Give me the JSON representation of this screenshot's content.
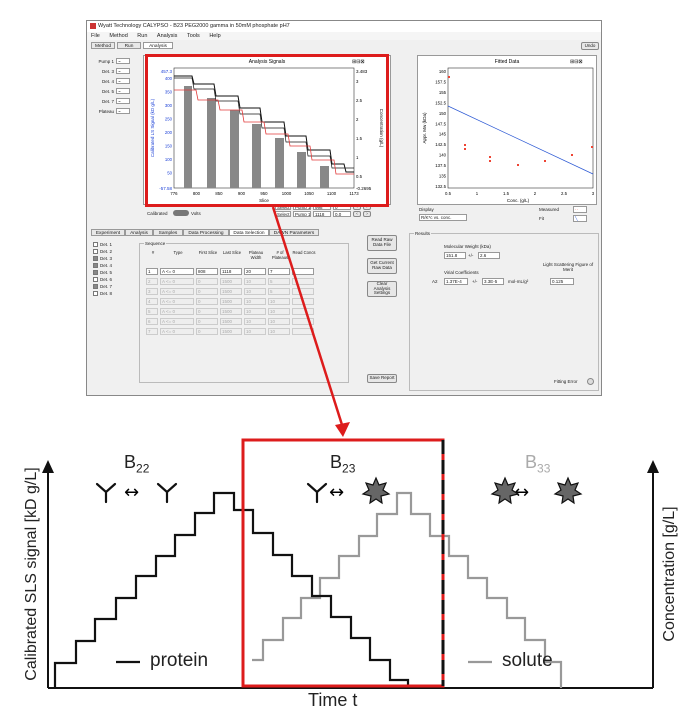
{
  "window": {
    "title": "Wyatt Technology CALYPSO - B23 PEG2000 gamma in 50mM phosphate pH7",
    "menu": [
      "File",
      "Method",
      "Run",
      "Analysis",
      "Tools",
      "Help"
    ],
    "tabs": [
      "Method",
      "Run",
      "Analysis"
    ],
    "undo_label": "Undo"
  },
  "left_list": [
    "Pump 1",
    "Det. 3",
    "Det. 4",
    "Det. 5",
    "Det. 7",
    "Plateau"
  ],
  "analysis_chart": {
    "title": "Analysis Signals",
    "ylabel": "Calibrated LS Signal (kD g/L)",
    "y2label": "Concentration (g/L)",
    "xlabel": "Slice",
    "y_top_label": "457.3",
    "y_bottom_label": "-57.58",
    "y2_top_label": "3.483",
    "y2_bottom_label": "-0.2695",
    "left_ticks": [
      "400",
      "350",
      "300",
      "250",
      "200",
      "150",
      "100",
      "50"
    ],
    "right_ticks": [
      "3",
      "2.5",
      "2",
      "1.5",
      "1",
      "0.5"
    ],
    "x_ticks": [
      "776",
      "800",
      "850",
      "900",
      "950",
      "1000",
      "1050",
      "1100",
      "1173"
    ]
  },
  "fitted_chart": {
    "title": "Fitted Data",
    "ylabel": "Appr. Mw (kDa)",
    "xlabel": "Conc. (g/L)",
    "y_ticks": [
      "160",
      "157.5",
      "155",
      "152.5",
      "150",
      "147.5",
      "145",
      "142.5",
      "140",
      "137.5",
      "135",
      "132.5"
    ],
    "x_ticks": [
      "0.5",
      "1",
      "1.5",
      "2",
      "2.5",
      "3"
    ],
    "display_label": "Display",
    "display_value": "R/K*c vs. conc.",
    "measured_label": "Measured",
    "fit_label": "Fit"
  },
  "calibrated_label": "Calibrated",
  "volts_label": "Volts",
  "small_fields": [
    [
      "Select",
      "Pump 1",
      "998",
      "0"
    ],
    [
      "Select",
      "Pump 1",
      "1118",
      "0.0"
    ]
  ],
  "bottom_tabs": [
    "Experiment",
    "Analysis",
    "Samples",
    "Data Processing",
    "Data Selection",
    "DAWN Parameters"
  ],
  "det_list": [
    "Det. 1",
    "Det. 2",
    "Det. 3",
    "Det. 4",
    "Det. 5",
    "Det. 6",
    "Det. 7",
    "Det. 8"
  ],
  "sequence": {
    "label": "Sequence",
    "headers": [
      "#",
      "Type",
      "First Slice",
      "Last Slice",
      "Plateau Width",
      "# of Plateaus",
      "Read Concs"
    ],
    "rows": [
      {
        "num": "1",
        "type": "A <= 0",
        "first": "808",
        "last": "1118",
        "width": "20",
        "count": "7"
      },
      {
        "num": "2",
        "type": "A <= 0",
        "first": "0",
        "last": "1500",
        "width": "10",
        "count": "5"
      },
      {
        "num": "3",
        "type": "A <= 0",
        "first": "0",
        "last": "1500",
        "width": "10",
        "count": "5"
      },
      {
        "num": "4",
        "type": "A <= 0",
        "first": "0",
        "last": "1500",
        "width": "10",
        "count": "10"
      },
      {
        "num": "5",
        "type": "A <= 0",
        "first": "0",
        "last": "1500",
        "width": "10",
        "count": "10"
      },
      {
        "num": "6",
        "type": "A <= 0",
        "first": "0",
        "last": "1500",
        "width": "10",
        "count": "10"
      },
      {
        "num": "7",
        "type": "A <= 0",
        "first": "0",
        "last": "1500",
        "width": "10",
        "count": "10"
      }
    ]
  },
  "side_buttons": [
    "Read Raw Data File",
    "Get Current Raw Data",
    "Clear Analysis Settings",
    "Save Report"
  ],
  "results": {
    "label": "Results",
    "mw_label": "Molecular Weight (kDa)",
    "mw_value": "151.8",
    "pm": "+/-",
    "mw_err": "2.6",
    "virial_label": "Virial Coefficients",
    "a2_label": "A2",
    "a2_value": "1.37E-4",
    "a2_err": "3.3E-5",
    "a2_unit": "mol-mL/g²",
    "fom_label": "Light Scattering Figure of Merit",
    "fom_value": "0.125",
    "fitting_error": "Fitting Error"
  },
  "diagram": {
    "left_axis": "Calibrated SLS signal [kD g/L]",
    "right_axis": "Concentration [g/L]",
    "x_axis": "Time t",
    "b22": "B",
    "b22_sub": "22",
    "b23": "B",
    "b23_sub": "23",
    "b33": "B",
    "b33_sub": "33",
    "arrow_glyph": "↔",
    "protein_label": "protein",
    "solute_label": "solute",
    "colors": {
      "protein": "#111111",
      "solute": "#999999",
      "highlight": "#dd1c1c"
    }
  }
}
